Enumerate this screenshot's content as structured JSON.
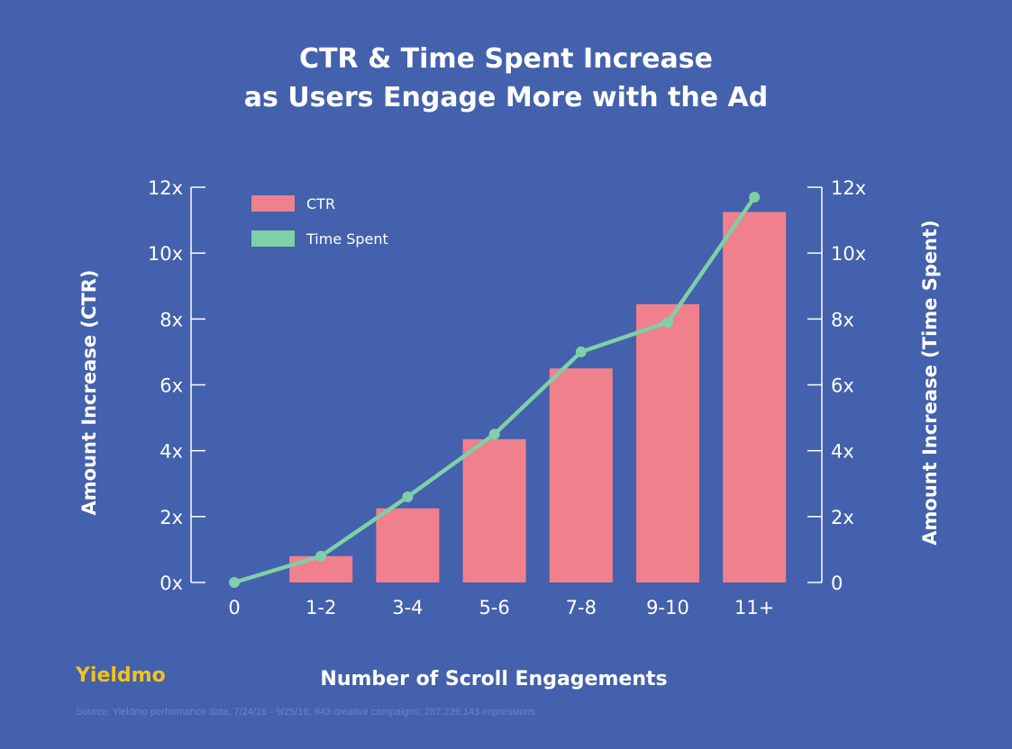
{
  "title_line1": "CTR & Time Spent Increase",
  "title_line2": "as Users Engage More with the Ad",
  "brand": "Yieldmo",
  "source": "Source: Yieldmo performance data, 7/24/16 - 9/25/16; 943 creative campaigns; 287,239,143 impressions",
  "colors": {
    "background": "#4361ac",
    "ctr": "#f0808c",
    "time_spent": "#7fcfa8",
    "brand": "#f4c21c"
  },
  "chart_data": {
    "type": "bar",
    "categories": [
      "0",
      "1-2",
      "3-4",
      "5-6",
      "7-8",
      "9-10",
      "11+"
    ],
    "xlabel": "Number of Scroll Engagements",
    "ylabel": "Amount Increase (CTR)",
    "ylabel_right": "Amount Increase (Time Spent)",
    "ylim": [
      0,
      12
    ],
    "yticks_left": [
      "0x",
      "2x",
      "4x",
      "6x",
      "8x",
      "10x",
      "12x"
    ],
    "yticks_right": [
      "0",
      "2x",
      "4x",
      "6x",
      "8x",
      "10x",
      "12x"
    ],
    "legend_position": "top-left",
    "series": [
      {
        "name": "CTR",
        "type": "bar",
        "values": [
          0,
          0.8,
          2.25,
          4.35,
          6.5,
          8.45,
          11.25
        ]
      },
      {
        "name": "Time Spent",
        "type": "line",
        "values": [
          0,
          0.8,
          2.6,
          4.5,
          7.0,
          7.9,
          11.7
        ]
      }
    ]
  }
}
